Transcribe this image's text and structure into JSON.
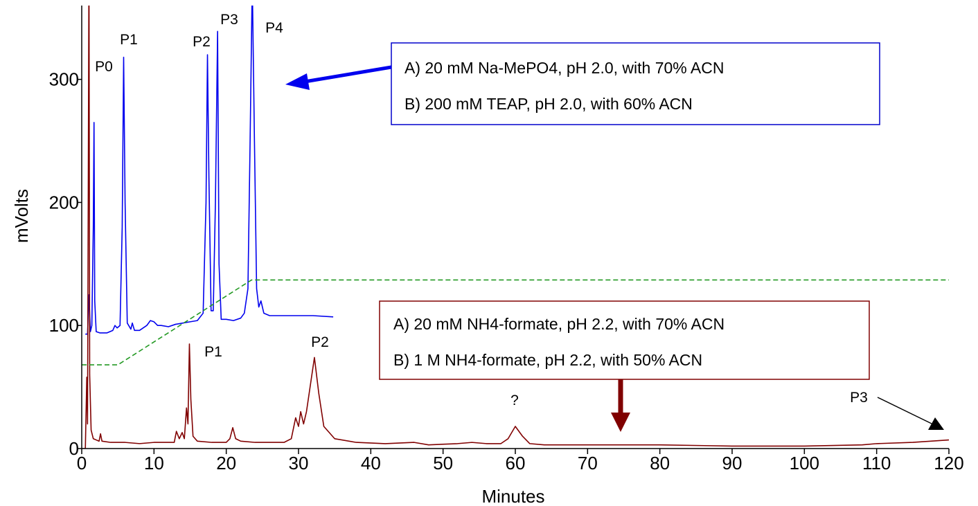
{
  "chart_data": {
    "type": "line",
    "xlabel": "Minutes",
    "ylabel": "mVolts",
    "xlim": [
      0,
      120
    ],
    "ylim": [
      0,
      360
    ],
    "xticks": [
      0,
      10,
      20,
      30,
      40,
      50,
      60,
      70,
      80,
      90,
      100,
      110,
      120
    ],
    "yticks": [
      0,
      100,
      200,
      300
    ],
    "series": [
      {
        "color": "#0000ee",
        "x": [
          0.5,
          0.8,
          1.0,
          1.1,
          1.2,
          1.4,
          1.6,
          1.7,
          1.8,
          2.0,
          2.5,
          3.5,
          4.3,
          4.6,
          4.9,
          5.3,
          5.6,
          5.8,
          6.0,
          6.3,
          6.8,
          7.0,
          7.3,
          8,
          9,
          9.5,
          10,
          10.5,
          11,
          12,
          13,
          14,
          15,
          16,
          16.8,
          17.2,
          17.4,
          17.6,
          17.9,
          18.2,
          18.5,
          18.8,
          19.0,
          19.3,
          20,
          21,
          22,
          22.5,
          23.0,
          23.3,
          23.6,
          23.9,
          24.2,
          24.5,
          24.8,
          25.2,
          26,
          28,
          30,
          32,
          34.8
        ],
        "values": [
          93,
          93,
          125,
          110,
          95,
          100,
          180,
          265,
          120,
          95,
          94,
          94,
          96,
          100,
          98,
          100,
          180,
          318,
          200,
          102,
          97,
          102,
          96,
          96,
          100,
          104,
          103,
          100,
          100,
          99,
          101,
          102,
          103,
          104,
          110,
          200,
          320,
          220,
          112,
          112,
          200,
          339,
          150,
          105,
          105,
          104,
          106,
          110,
          130,
          250,
          380,
          250,
          130,
          115,
          120,
          110,
          108,
          108,
          108,
          108,
          107
        ]
      },
      {
        "color": "#800000",
        "x": [
          0,
          0.5,
          0.7,
          0.8,
          0.9,
          1.0,
          1.1,
          1.3,
          1.6,
          2.0,
          2.4,
          2.6,
          2.8,
          4,
          6,
          8,
          10,
          12,
          12.8,
          13.1,
          13.5,
          13.9,
          14.2,
          14.5,
          14.7,
          14.9,
          15.1,
          15.4,
          16,
          18,
          20,
          20.5,
          20.9,
          21.3,
          22,
          24,
          26,
          28,
          29,
          29.6,
          30.0,
          30.3,
          30.7,
          31.1,
          31.6,
          32.2,
          32.8,
          33.5,
          35,
          38,
          42,
          46,
          48,
          52,
          54,
          56,
          58,
          59,
          60,
          61,
          62,
          64,
          70,
          80,
          90,
          100,
          108,
          110,
          115,
          120
        ],
        "values": [
          0,
          0,
          58,
          20,
          200,
          400,
          60,
          15,
          8,
          7,
          6,
          12,
          6,
          5,
          5,
          4,
          5,
          5,
          5,
          14,
          8,
          13,
          8,
          33,
          20,
          85,
          40,
          10,
          6,
          5,
          5,
          8,
          17,
          8,
          6,
          5,
          5,
          5,
          8,
          25,
          18,
          30,
          20,
          30,
          50,
          74,
          45,
          18,
          8,
          5,
          4,
          5,
          3,
          4,
          5,
          4,
          4,
          8,
          18,
          10,
          4,
          3,
          3,
          3,
          2,
          2,
          3,
          4,
          5,
          7
        ]
      },
      {
        "color": "#229922",
        "dashed": true,
        "x": [
          0,
          5,
          23.5,
          120
        ],
        "values": [
          68,
          68,
          137,
          137
        ]
      }
    ],
    "annotations": [
      "P0",
      "P1",
      "P2",
      "P3",
      "P4",
      "P1",
      "P2",
      "?",
      "P3"
    ],
    "boxes": [
      [
        "A) 20 mM Na-MePO4, pH 2.0, with 70% ACN",
        "B) 200 mM TEAP, pH 2.0, with 60% ACN"
      ],
      [
        "A) 20 mM NH4-formate, pH 2.2, with 70% ACN",
        "B) 1 M NH4-formate, pH 2.2, with 50% ACN"
      ]
    ]
  }
}
